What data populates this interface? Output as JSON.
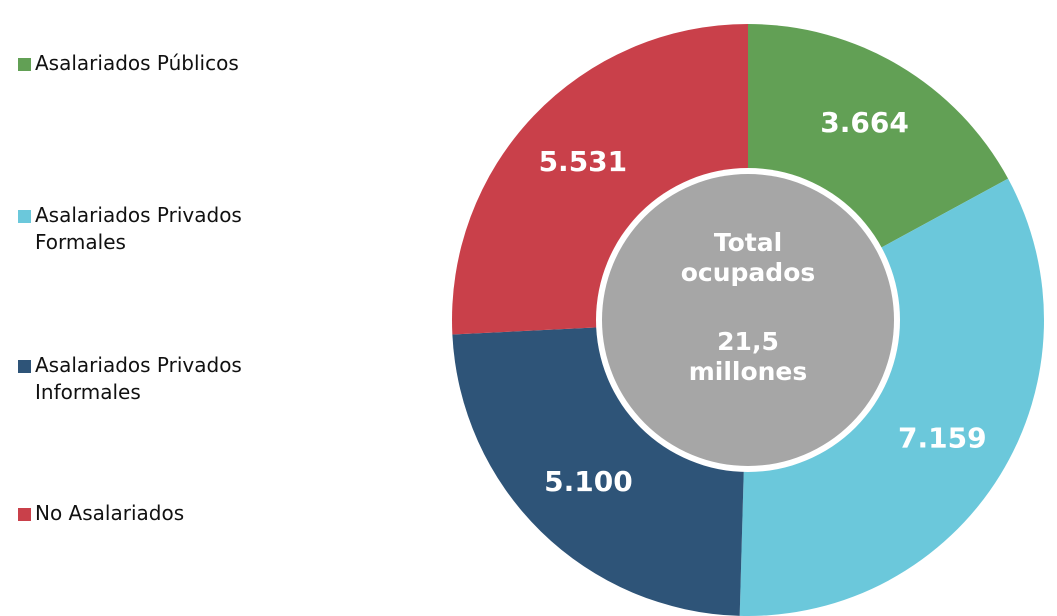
{
  "chart_data": {
    "type": "donut",
    "categories": [
      "Asalariados Públicos",
      "Asalariados Privados Formales",
      "Asalariados Privados Informales",
      "No Asalariados"
    ],
    "values": [
      3664,
      7159,
      5100,
      5531
    ],
    "value_labels": [
      "3.664",
      "7.159",
      "5.100",
      "5.531"
    ],
    "colors": [
      "#62a055",
      "#6bc8db",
      "#2e5478",
      "#c9404a"
    ],
    "center_title": "Total ocupados",
    "center_value": "21,5 millones",
    "legend": "left"
  }
}
